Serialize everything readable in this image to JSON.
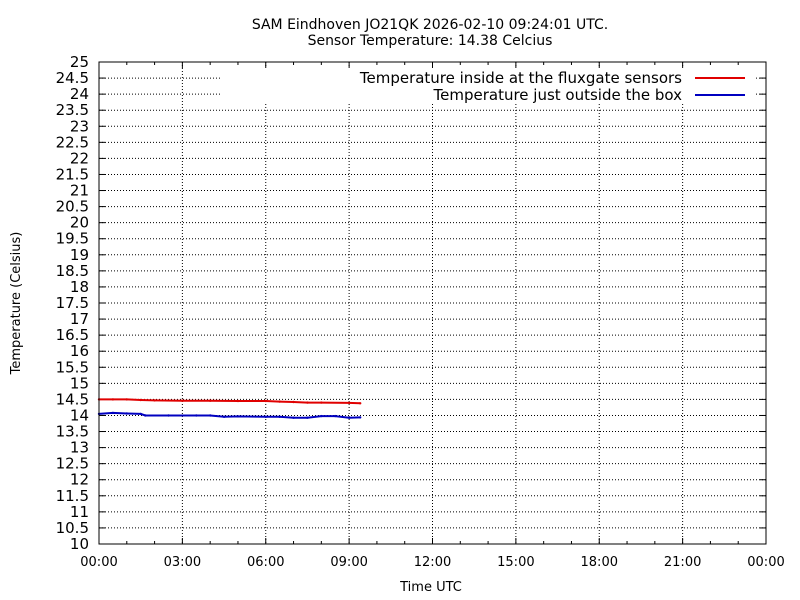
{
  "chart_data": {
    "type": "line",
    "title": "SAM Eindhoven JO21QK 2026-02-10 09:24:01 UTC.",
    "subtitle": "Sensor Temperature: 14.38 Celcius",
    "xlabel": "Time UTC",
    "ylabel": "Temperature (Celsius)",
    "xlim": [
      "00:00",
      "24:00"
    ],
    "ylim": [
      10,
      25
    ],
    "grid": true,
    "legend_position": "top-right",
    "x_ticks": [
      "00:00",
      "03:00",
      "06:00",
      "09:00",
      "12:00",
      "15:00",
      "18:00",
      "21:00",
      "00:00"
    ],
    "y_ticks": [
      "10",
      "10.5",
      "11",
      "11.5",
      "12",
      "12.5",
      "13",
      "13.5",
      "14",
      "14.5",
      "15",
      "15.5",
      "16",
      "16.5",
      "17",
      "17.5",
      "18",
      "18.5",
      "19",
      "19.5",
      "20",
      "20.5",
      "21",
      "21.5",
      "22",
      "22.5",
      "23",
      "23.5",
      "24",
      "24.5",
      "25"
    ],
    "series": [
      {
        "name": "Temperature inside at the fluxgate sensors",
        "color": "#e00000",
        "x": [
          "00:00",
          "00:30",
          "01:00",
          "01:30",
          "02:00",
          "03:00",
          "04:00",
          "05:00",
          "06:00",
          "06:30",
          "07:00",
          "07:30",
          "08:00",
          "09:00",
          "09:24"
        ],
        "y": [
          14.5,
          14.5,
          14.5,
          14.48,
          14.47,
          14.46,
          14.46,
          14.45,
          14.45,
          14.43,
          14.42,
          14.4,
          14.4,
          14.39,
          14.38
        ]
      },
      {
        "name": "Temperature just outside the box",
        "color": "#0000c0",
        "x": [
          "00:00",
          "00:30",
          "01:00",
          "01:30",
          "01:40",
          "02:30",
          "03:30",
          "04:00",
          "04:30",
          "05:00",
          "06:00",
          "06:30",
          "07:00",
          "07:30",
          "08:00",
          "08:30",
          "09:00",
          "09:24"
        ],
        "y": [
          14.05,
          14.08,
          14.06,
          14.05,
          14.0,
          14.0,
          14.0,
          14.0,
          13.96,
          13.97,
          13.96,
          13.96,
          13.93,
          13.93,
          13.98,
          13.98,
          13.93,
          13.94
        ]
      }
    ]
  }
}
